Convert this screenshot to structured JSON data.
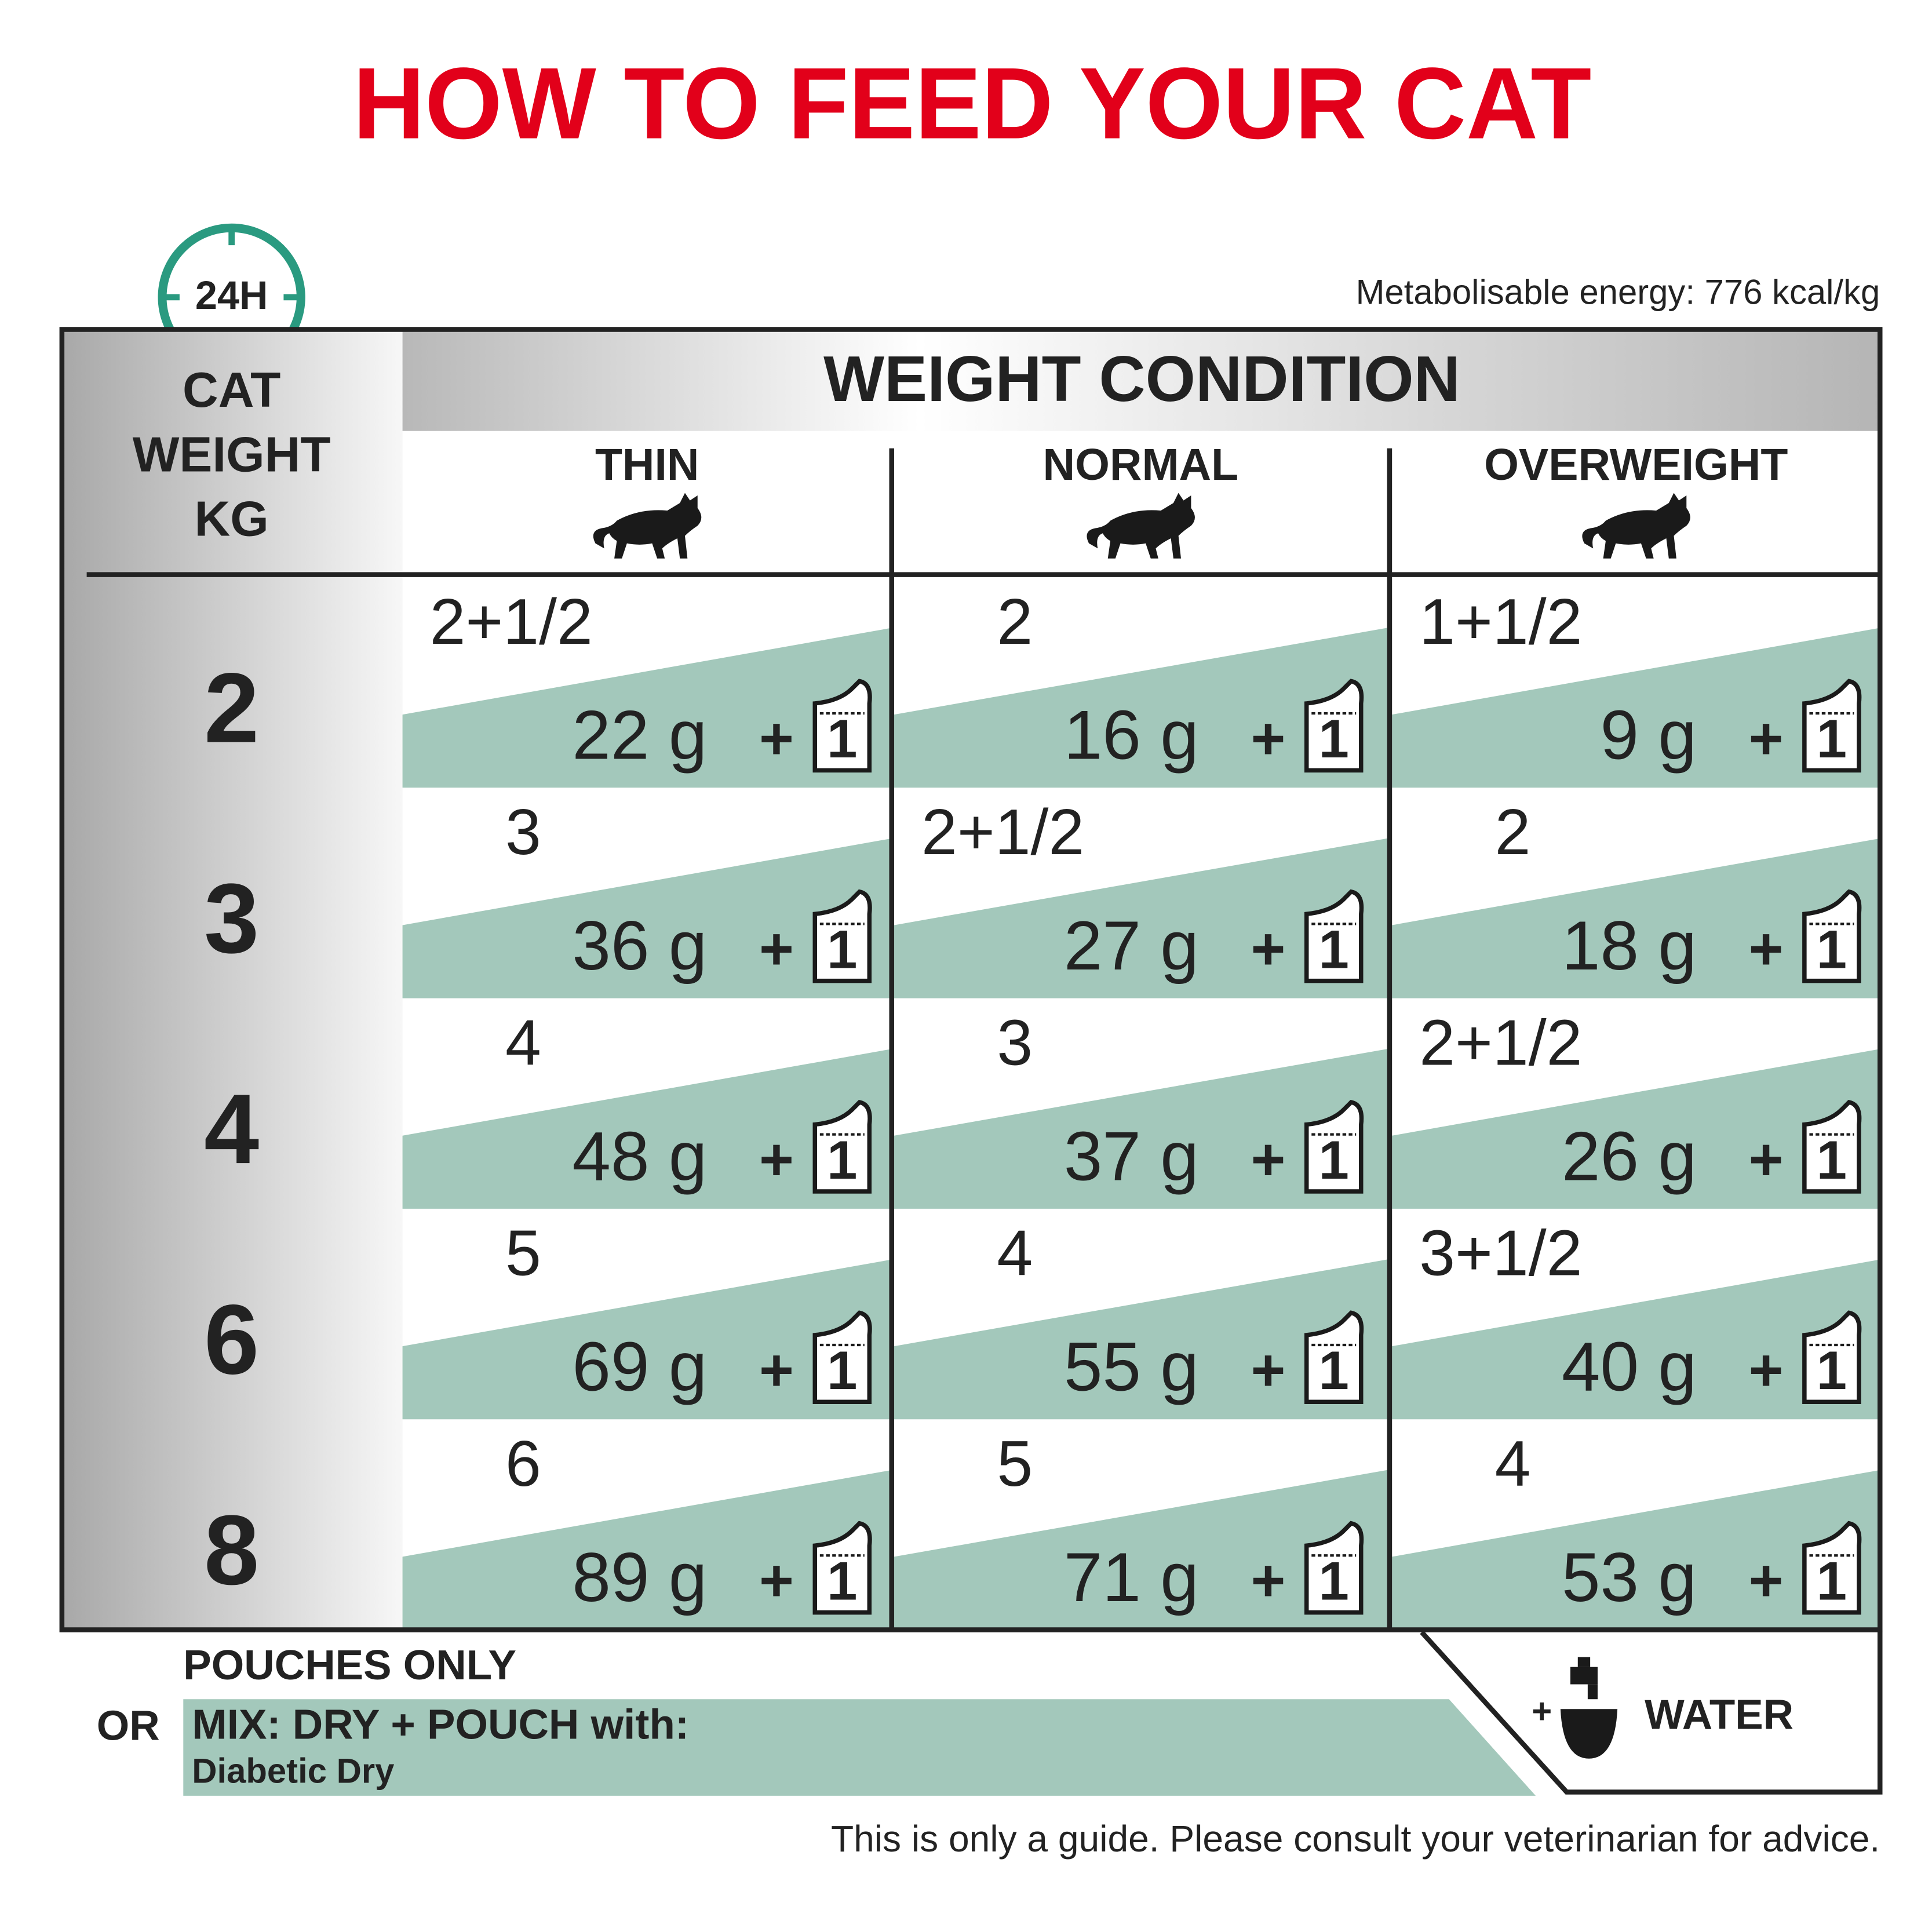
{
  "title": "HOW TO FEED YOUR CAT",
  "clock_label": "24H",
  "energy_note": "Metabolisable energy: 776 kcal/kg",
  "table": {
    "row_header": [
      "CAT",
      "WEIGHT",
      "KG"
    ],
    "group_header": "WEIGHT CONDITION",
    "columns": [
      "THIN",
      "NORMAL",
      "OVERWEIGHT"
    ],
    "plus": "+",
    "pouch_icon_label": "1",
    "rows": [
      {
        "weight": "2",
        "cells": [
          {
            "pouches": "2+1/2",
            "dry": "22 g"
          },
          {
            "pouches": "2",
            "dry": "16 g"
          },
          {
            "pouches": "1+1/2",
            "dry": "9 g"
          }
        ]
      },
      {
        "weight": "3",
        "cells": [
          {
            "pouches": "3",
            "dry": "36 g"
          },
          {
            "pouches": "2+1/2",
            "dry": "27 g"
          },
          {
            "pouches": "2",
            "dry": "18 g"
          }
        ]
      },
      {
        "weight": "4",
        "cells": [
          {
            "pouches": "4",
            "dry": "48 g"
          },
          {
            "pouches": "3",
            "dry": "37 g"
          },
          {
            "pouches": "2+1/2",
            "dry": "26 g"
          }
        ]
      },
      {
        "weight": "6",
        "cells": [
          {
            "pouches": "5",
            "dry": "69 g"
          },
          {
            "pouches": "4",
            "dry": "55 g"
          },
          {
            "pouches": "3+1/2",
            "dry": "40 g"
          }
        ]
      },
      {
        "weight": "8",
        "cells": [
          {
            "pouches": "6",
            "dry": "89 g"
          },
          {
            "pouches": "5",
            "dry": "71 g"
          },
          {
            "pouches": "4",
            "dry": "53 g"
          }
        ]
      }
    ]
  },
  "pouches_only": "POUCHES ONLY",
  "or": "OR",
  "mix": "MIX: DRY + POUCH with:",
  "mix_product": "Diabetic Dry",
  "water_plus": "+",
  "water": "WATER",
  "footer": "This is only a guide. Please consult your veterinarian for advice."
}
